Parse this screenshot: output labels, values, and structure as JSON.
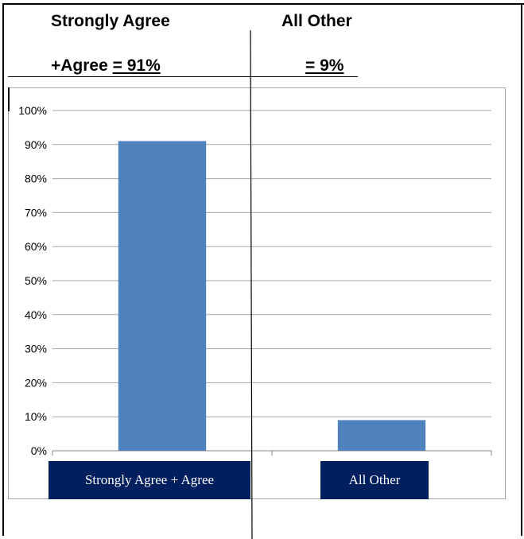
{
  "header": {
    "left_line1": "Strongly Agree",
    "left_line2_prefix": "+Agree ",
    "left_line2_value": "= 91%",
    "right_line1": "All Other",
    "right_value": "=  9%"
  },
  "chart_data": {
    "type": "bar",
    "categories": [
      "Strongly Agree + Agree",
      "All Other"
    ],
    "values": [
      91,
      9
    ],
    "ylim": [
      0,
      100
    ],
    "yticks": [
      "0%",
      "10%",
      "20%",
      "30%",
      "40%",
      "50%",
      "60%",
      "70%",
      "80%",
      "90%",
      "100%"
    ],
    "grid": true,
    "bar_color": "#4f81bd",
    "gridline_color": "#a6a6a6",
    "category_label_bg": "#001f5f"
  }
}
